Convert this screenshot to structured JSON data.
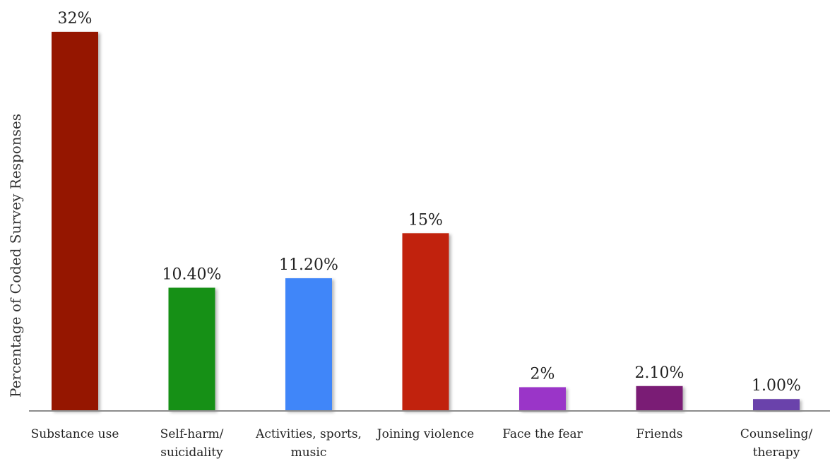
{
  "chart_data": {
    "type": "bar",
    "title": "",
    "xlabel": "",
    "ylabel": "Percentage of Coded Survey Responses",
    "ylim": [
      0,
      32
    ],
    "grid": false,
    "legend": "none",
    "categories": [
      [
        "Substance use"
      ],
      [
        "Self-harm/",
        "suicidality"
      ],
      [
        "Activities, sports,",
        "music"
      ],
      [
        "Joining violence"
      ],
      [
        "Face the fear"
      ],
      [
        "Friends"
      ],
      [
        "Counseling/",
        "therapy"
      ]
    ],
    "values": [
      32,
      10.4,
      11.2,
      15,
      2,
      2.1,
      1.0
    ],
    "data_labels": [
      "32%",
      "10.40%",
      "11.20%",
      "15%",
      "2%",
      "2.10%",
      "1.00%"
    ],
    "colors": [
      "#951200",
      "#129018",
      "#3f86f9",
      "#c12409",
      "#9a34c8",
      "#7a1d74",
      "#6a42ab"
    ]
  }
}
